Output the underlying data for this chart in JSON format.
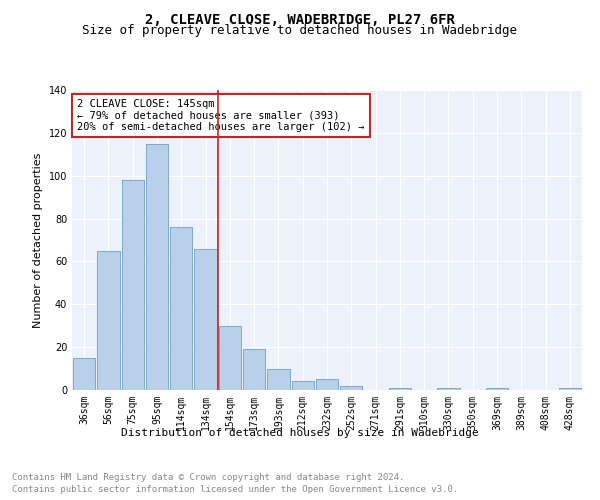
{
  "title": "2, CLEAVE CLOSE, WADEBRIDGE, PL27 6FR",
  "subtitle": "Size of property relative to detached houses in Wadebridge",
  "xlabel": "Distribution of detached houses by size in Wadebridge",
  "ylabel": "Number of detached properties",
  "footnote1": "Contains HM Land Registry data © Crown copyright and database right 2024.",
  "footnote2": "Contains public sector information licensed under the Open Government Licence v3.0.",
  "categories": [
    "36sqm",
    "56sqm",
    "75sqm",
    "95sqm",
    "114sqm",
    "134sqm",
    "154sqm",
    "173sqm",
    "193sqm",
    "212sqm",
    "232sqm",
    "252sqm",
    "271sqm",
    "291sqm",
    "310sqm",
    "330sqm",
    "350sqm",
    "369sqm",
    "389sqm",
    "408sqm",
    "428sqm"
  ],
  "values": [
    15,
    65,
    98,
    115,
    76,
    66,
    30,
    19,
    10,
    4,
    5,
    2,
    0,
    1,
    0,
    1,
    0,
    1,
    0,
    0,
    1
  ],
  "bar_color": "#b8d0ea",
  "bar_edge_color": "#6fa0c8",
  "vline_x": 5.5,
  "vline_color": "#cc2222",
  "annotation_text": "2 CLEAVE CLOSE: 145sqm\n← 79% of detached houses are smaller (393)\n20% of semi-detached houses are larger (102) →",
  "annotation_box_color": "#cc2222",
  "ylim": [
    0,
    140
  ],
  "yticks": [
    0,
    20,
    40,
    60,
    80,
    100,
    120,
    140
  ],
  "bg_color": "#edf1fb",
  "grid_color": "#ffffff",
  "title_fontsize": 10,
  "subtitle_fontsize": 9,
  "axis_label_fontsize": 8,
  "tick_fontsize": 7,
  "annotation_fontsize": 7.5,
  "footnote_fontsize": 6.5
}
